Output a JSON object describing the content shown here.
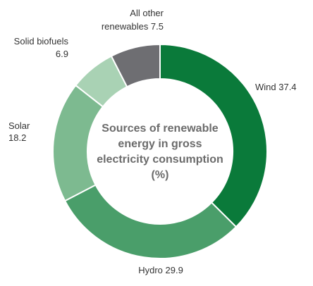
{
  "chart_data": {
    "type": "pie",
    "donut": true,
    "title_lines": [
      "Sources of renewable",
      "energy in gross",
      "electricity consumption",
      "(%)"
    ],
    "slices": [
      {
        "label": "Wind",
        "value": 37.4,
        "value_text": "37.4",
        "color": "#0a7a3a"
      },
      {
        "label": "Hydro",
        "value": 29.9,
        "value_text": "29.9",
        "color": "#4a9e6a"
      },
      {
        "label": "Solar",
        "value": 18.2,
        "value_text": "18.2",
        "color": "#7dba90"
      },
      {
        "label": "Solid biofuels",
        "value": 6.9,
        "value_text": "6.9",
        "color": "#a9d2b4"
      },
      {
        "label_lines": [
          "All other",
          "renewables"
        ],
        "label": "All other renewables",
        "value": 7.5,
        "value_text": "7.5",
        "color": "#6e6e72"
      }
    ],
    "legend": "none",
    "start_angle_deg": 0,
    "direction": "clockwise"
  }
}
